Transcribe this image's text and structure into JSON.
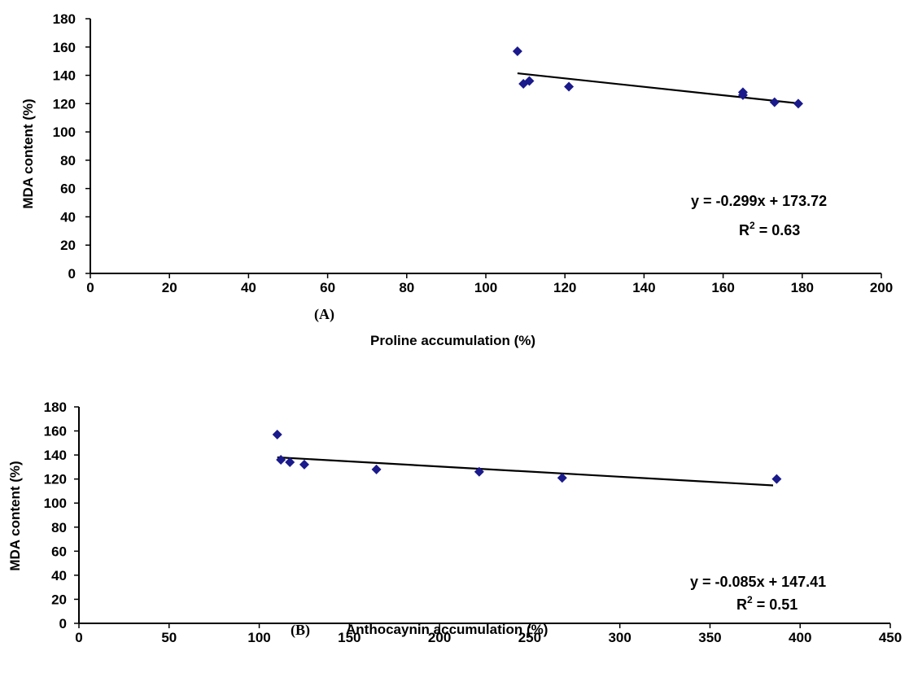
{
  "chart_data": [
    {
      "type": "scatter",
      "panel_label": "(A)",
      "xlabel": "Proline accumulation (%)",
      "ylabel": "MDA content (%)",
      "xlim": [
        0,
        200
      ],
      "ylim": [
        0,
        180
      ],
      "xticks": [
        "0",
        "20",
        "40",
        "60",
        "80",
        "100",
        "120",
        "140",
        "160",
        "180",
        "200"
      ],
      "yticks": [
        "0",
        "20",
        "40",
        "60",
        "80",
        "100",
        "120",
        "140",
        "160",
        "180"
      ],
      "grid": false,
      "marker_color": "#1a1a8c",
      "x": [
        108,
        109.5,
        111,
        121,
        165,
        165,
        173,
        179
      ],
      "y": [
        157,
        134,
        136,
        132,
        128,
        126,
        121,
        120
      ],
      "trendline": {
        "slope": -0.299,
        "intercept": 173.72,
        "x_range": [
          108,
          179
        ]
      },
      "equation": "y = -0.299x + 173.72",
      "r2_prefix": "R",
      "r2_sup": "2",
      "r2_value": " = 0.63"
    },
    {
      "type": "scatter",
      "panel_label": "(B)",
      "xlabel": "Anthocaynin accumulation (%)",
      "ylabel": "MDA content (%)",
      "xlim": [
        0,
        450
      ],
      "ylim": [
        0,
        180
      ],
      "xticks": [
        "0",
        "50",
        "100",
        "150",
        "200",
        "250",
        "300",
        "350",
        "400",
        "450"
      ],
      "yticks": [
        "0",
        "20",
        "40",
        "60",
        "80",
        "100",
        "120",
        "140",
        "160",
        "180"
      ],
      "grid": false,
      "marker_color": "#1a1a8c",
      "x": [
        110,
        112,
        117,
        125,
        165,
        222,
        268,
        387
      ],
      "y": [
        157,
        136,
        134,
        132,
        128,
        126,
        121,
        120
      ],
      "trendline": {
        "slope": -0.085,
        "intercept": 147.41,
        "x_range": [
          110,
          385
        ]
      },
      "equation": "y = -0.085x + 147.41",
      "r2_prefix": "R",
      "r2_sup": "2",
      "r2_value": " = 0.51"
    }
  ]
}
